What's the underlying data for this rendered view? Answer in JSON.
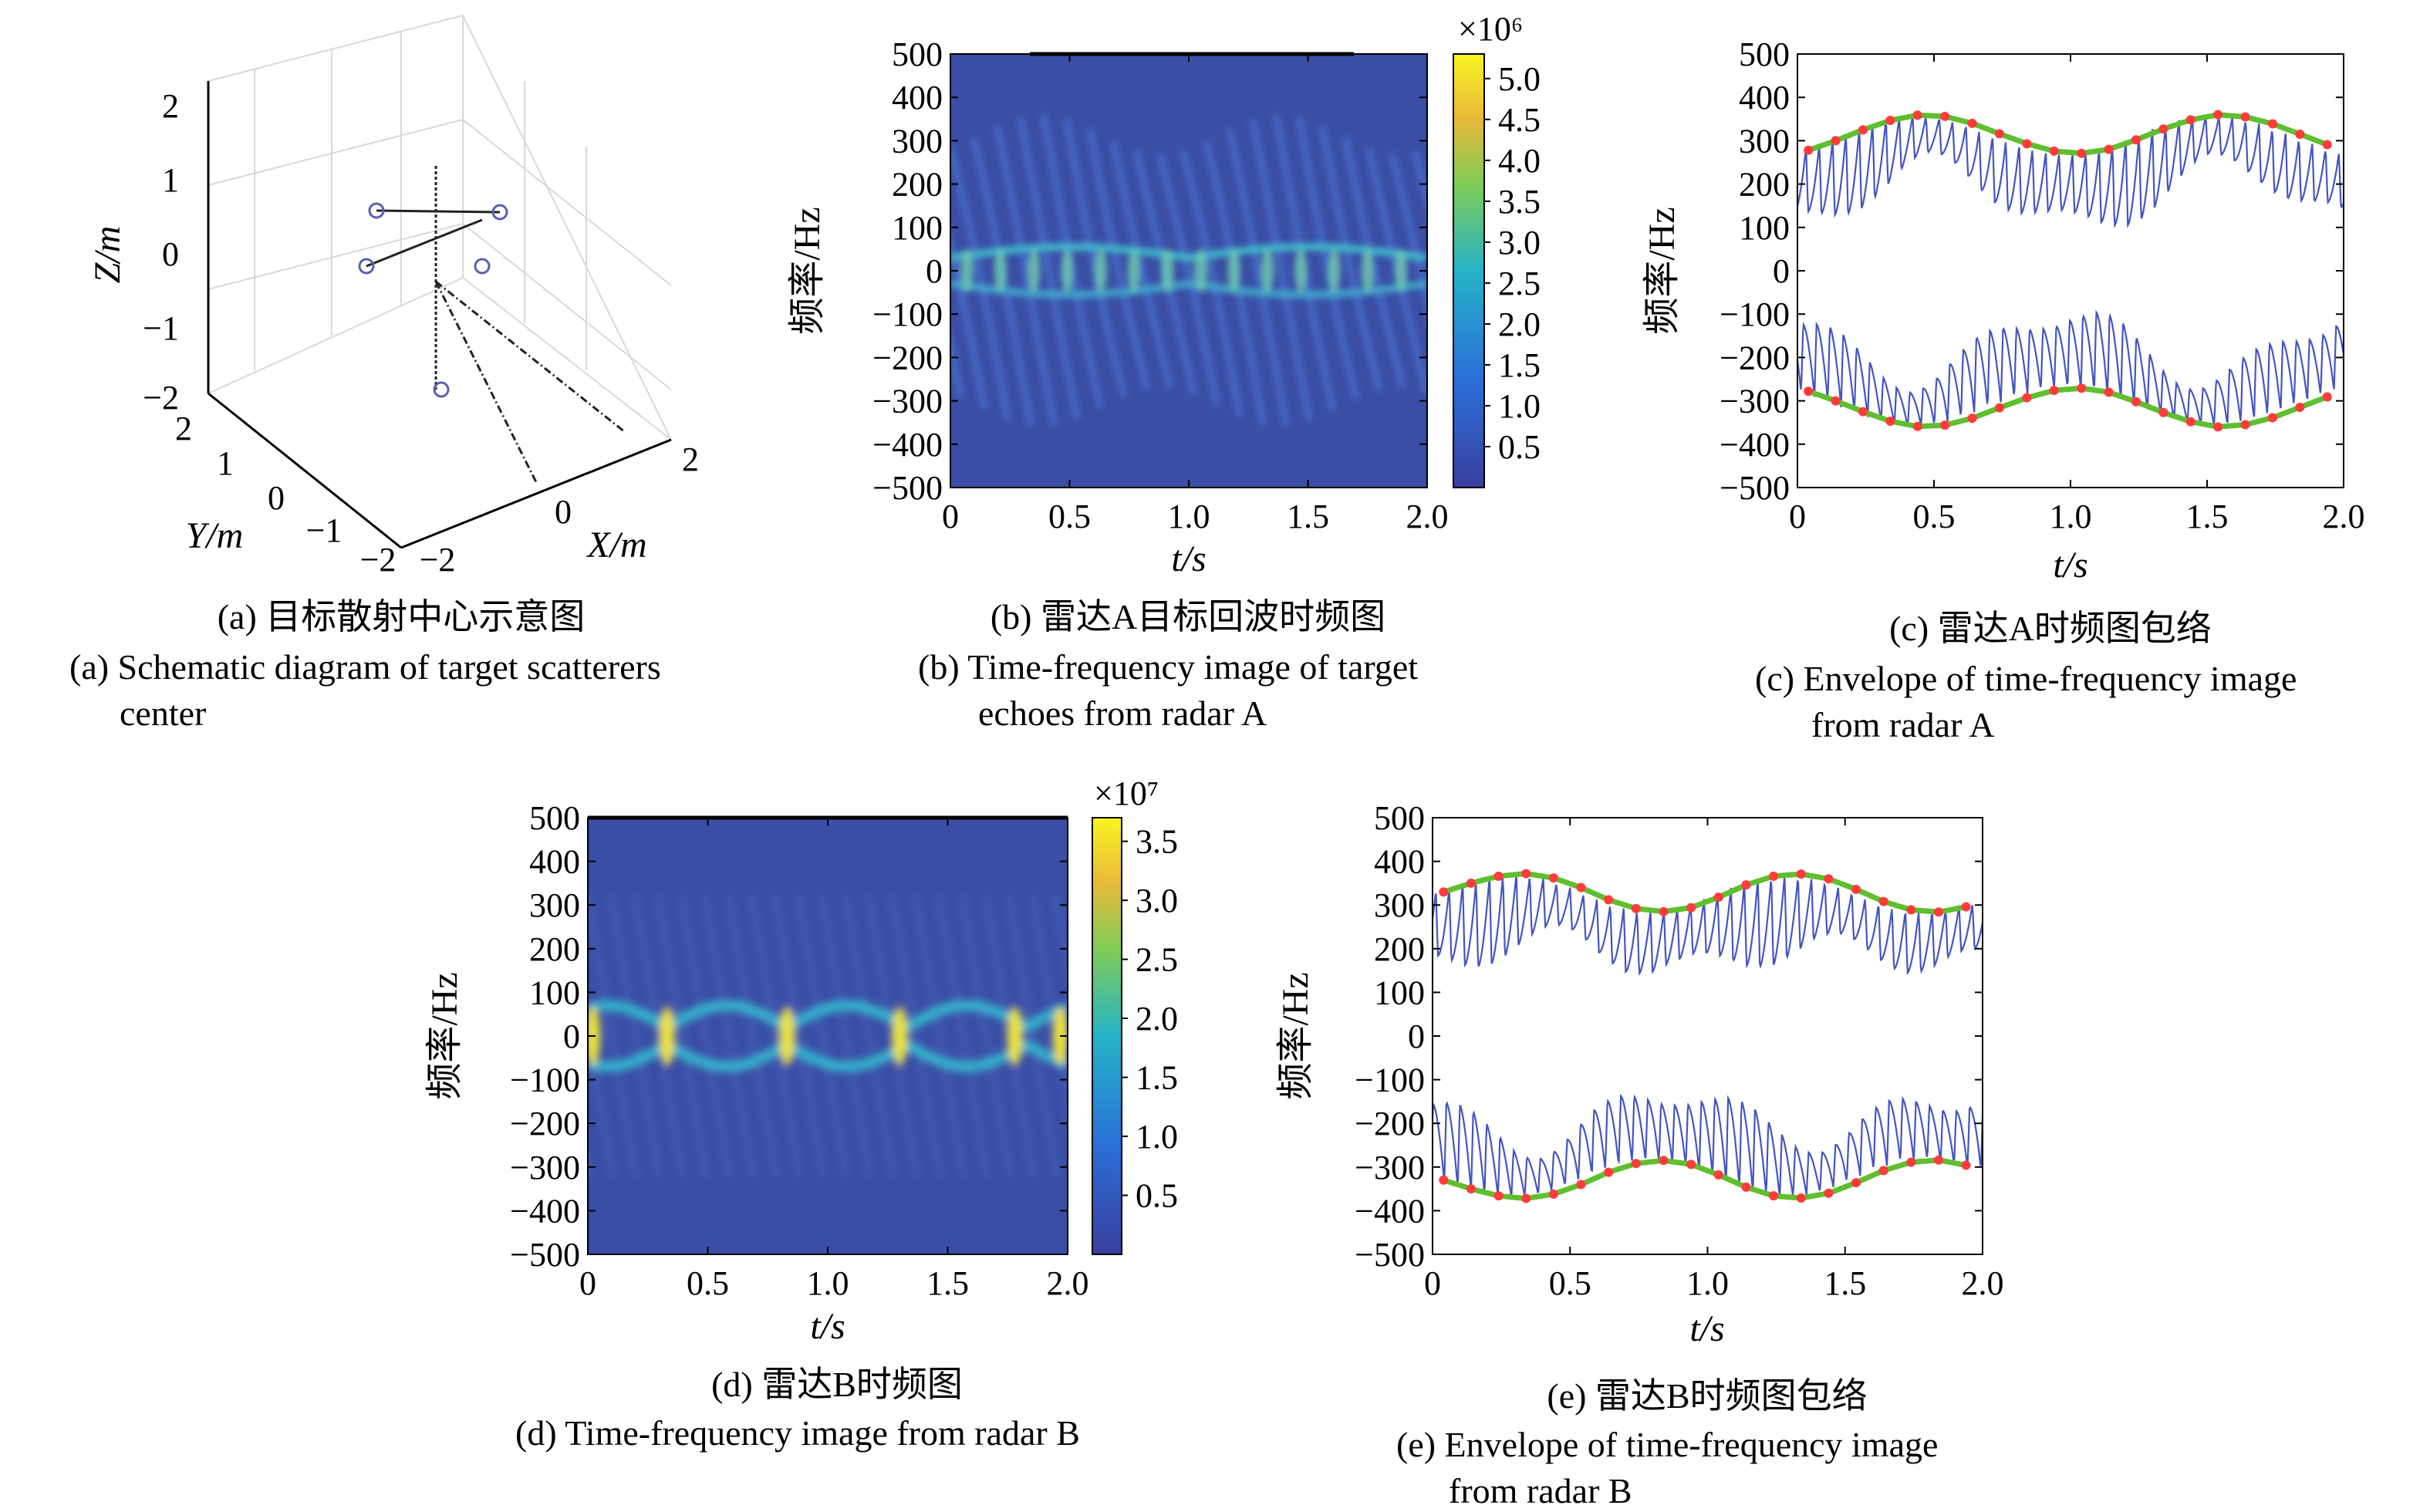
{
  "panels": {
    "a": {
      "caption_cn": "(a) 目标散射中心示意图",
      "caption_en1": "(a) Schematic diagram of target scatterers",
      "caption_en2": "center",
      "xlabel": "X/m",
      "ylabel": "Y/m",
      "zlabel": "Z/m",
      "z_ticks": [
        "2",
        "1",
        "0",
        "−1",
        "−2"
      ],
      "y_ticks": [
        "2",
        "1",
        "0",
        "−1",
        "−2"
      ],
      "x_ticks": [
        "−2",
        "0",
        "2"
      ]
    },
    "b": {
      "caption_cn": "(b) 雷达A目标回波时频图",
      "caption_en1": "(b) Time-frequency image of target",
      "caption_en2": "echoes from radar A",
      "xlabel": "t/s",
      "ylabel": "频率/Hz",
      "colorbar_exp": "×10⁶",
      "colorbar_ticks": [
        "5.0",
        "4.5",
        "4.0",
        "3.5",
        "3.0",
        "2.5",
        "2.0",
        "1.5",
        "1.0",
        "0.5"
      ]
    },
    "c": {
      "caption_cn": "(c) 雷达A时频图包络",
      "caption_en1": "(c) Envelope of time-frequency image",
      "caption_en2": "from radar A",
      "xlabel": "t/s",
      "ylabel": "频率/Hz"
    },
    "d": {
      "caption_cn": "(d) 雷达B时频图",
      "caption_en1": "(d) Time-frequency image from radar B",
      "xlabel": "t/s",
      "ylabel": "频率/Hz",
      "colorbar_exp": "×10⁷",
      "colorbar_ticks": [
        "3.5",
        "3.0",
        "2.5",
        "2.0",
        "1.5",
        "1.0",
        "0.5"
      ]
    },
    "e": {
      "caption_cn": "(e) 雷达B时频图包络",
      "caption_en1": "(e) Envelope of time-frequency image",
      "caption_en2": "from radar B",
      "xlabel": "t/s",
      "ylabel": "频率/Hz"
    }
  },
  "axis_ticks": {
    "x": [
      "0",
      "0.5",
      "1.0",
      "1.5",
      "2.0"
    ],
    "y": [
      "500",
      "400",
      "300",
      "200",
      "100",
      "0",
      "−100",
      "−200",
      "−300",
      "−400",
      "−500"
    ]
  },
  "colors": {
    "heatmap_background": "#3a4ea5",
    "signal_line": "#4455c0",
    "envelope_line": "#5fbf2f",
    "envelope_marker": "#ff3b3b",
    "scatterer_marker": "#5a60b0"
  },
  "chart_data": [
    {
      "type": "heatmap",
      "panel": "b",
      "xlabel": "t/s",
      "ylabel": "频率/Hz",
      "xlim": [
        0,
        2.0
      ],
      "ylim": [
        -500,
        500
      ],
      "colorbar_range": [
        0,
        5.3
      ],
      "colorbar_scale": "×10⁶",
      "upper_envelope_min_max": [
        270,
        360
      ],
      "lower_envelope_min_max": [
        -360,
        -270
      ],
      "period_s": 1.0
    },
    {
      "type": "line",
      "panel": "c",
      "xlabel": "t/s",
      "ylabel": "频率/Hz",
      "xlim": [
        0,
        2.0
      ],
      "ylim": [
        -500,
        500
      ],
      "x": [
        0.0,
        0.1,
        0.2,
        0.3,
        0.4,
        0.5,
        0.6,
        0.7,
        0.8,
        0.9,
        1.0,
        1.1,
        1.2,
        1.3,
        1.4,
        1.5,
        1.6,
        1.7,
        1.8,
        1.9
      ],
      "series": [
        {
          "values": [
            278,
            300,
            325,
            347,
            359,
            356,
            340,
            316,
            293,
            276,
            271,
            280,
            302,
            327,
            348,
            360,
            355,
            339,
            315,
            291
          ]
        },
        {
          "values": [
            -278,
            -300,
            -325,
            -347,
            -359,
            -356,
            -340,
            -316,
            -293,
            -276,
            -271,
            -280,
            -302,
            -327,
            -348,
            -360,
            -355,
            -339,
            -315,
            -291
          ]
        }
      ]
    },
    {
      "type": "heatmap",
      "panel": "d",
      "xlabel": "t/s",
      "ylabel": "频率/Hz",
      "xlim": [
        0,
        2.0
      ],
      "ylim": [
        -500,
        500
      ],
      "colorbar_range": [
        0,
        3.7
      ],
      "colorbar_scale": "×10⁷",
      "central_band_halfwidth_hz": [
        20,
        70
      ],
      "period_s": 0.5
    },
    {
      "type": "line",
      "panel": "e",
      "xlabel": "t/s",
      "ylabel": "频率/Hz",
      "xlim": [
        0,
        2.0
      ],
      "ylim": [
        -500,
        500
      ],
      "x": [
        0.0,
        0.1,
        0.2,
        0.3,
        0.4,
        0.5,
        0.6,
        0.7,
        0.8,
        0.9,
        1.0,
        1.1,
        1.2,
        1.3,
        1.4,
        1.5,
        1.6,
        1.7,
        1.8,
        1.9
      ],
      "series": [
        {
          "values": [
            330,
            350,
            366,
            372,
            362,
            340,
            312,
            292,
            285,
            294,
            318,
            346,
            366,
            371,
            360,
            336,
            308,
            289,
            284,
            296
          ]
        },
        {
          "values": [
            -330,
            -350,
            -366,
            -372,
            -362,
            -340,
            -312,
            -292,
            -285,
            -294,
            -318,
            -346,
            -366,
            -371,
            -360,
            -336,
            -308,
            -289,
            -284,
            -296
          ]
        }
      ]
    }
  ]
}
